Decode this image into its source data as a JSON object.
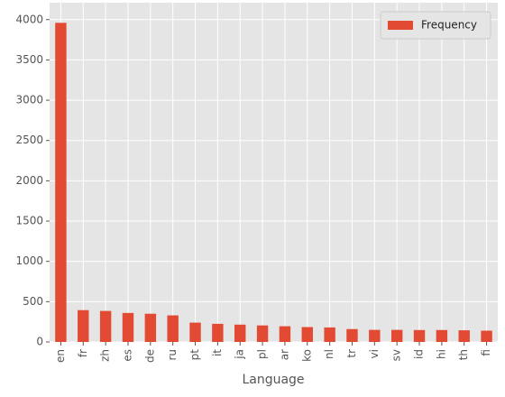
{
  "chart_data": {
    "type": "bar",
    "x_label": "Language",
    "categories": [
      "en",
      "fr",
      "zh",
      "es",
      "de",
      "ru",
      "pt",
      "it",
      "ja",
      "pl",
      "ar",
      "ko",
      "nl",
      "tr",
      "vi",
      "sv",
      "id",
      "hi",
      "th",
      "fi"
    ],
    "series": [
      {
        "name": "Frequency",
        "color": "#e24a33",
        "values": [
          3960,
          395,
          385,
          360,
          350,
          330,
          240,
          225,
          215,
          205,
          195,
          185,
          180,
          160,
          150,
          150,
          148,
          148,
          145,
          140
        ]
      }
    ],
    "ylim": [
      0,
      4210
    ],
    "yticks": [
      0,
      500,
      1000,
      1500,
      2000,
      2500,
      3000,
      3500,
      4000
    ],
    "grid": true,
    "legend": "upper-right"
  }
}
